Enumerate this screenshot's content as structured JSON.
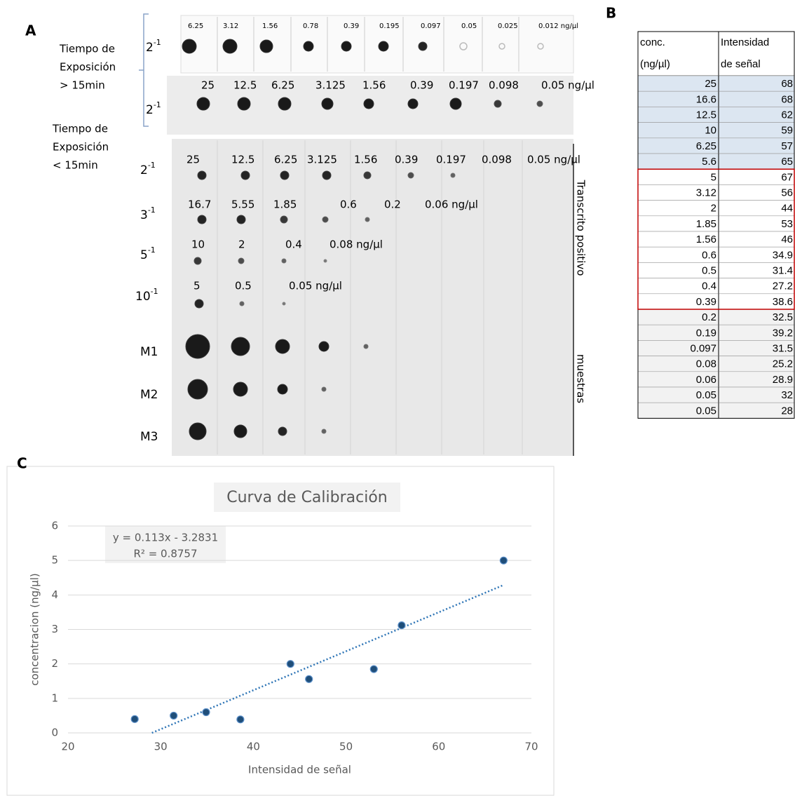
{
  "panel_a": {
    "label": "A",
    "exposure_long": [
      "Tiempo de",
      "Exposición",
      "> 15min"
    ],
    "exposure_short": [
      "Tiempo de",
      "Exposición",
      "< 15min"
    ],
    "strips": [
      {
        "dilution": {
          "base": "2",
          "exp": "-1"
        },
        "concentrations": [
          "6.25",
          "3.12",
          "1.56",
          "0.78",
          "0.39",
          "0.195",
          "0.097",
          "0.05",
          "0.025",
          "0.012 ng/µl"
        ]
      },
      {
        "dilution": {
          "base": "2",
          "exp": "-1"
        },
        "concentrations": [
          "25",
          "12.5",
          "6.25",
          "3.125",
          "1.56",
          "0.39",
          "0.197",
          "0.098",
          "0.05 ng/µl"
        ]
      }
    ],
    "blot_rows": [
      {
        "dilution": {
          "base": "2",
          "exp": "-1"
        },
        "concentrations": [
          "25",
          "12.5",
          "6.25",
          "3.125",
          "1.56",
          "0.39",
          "0.197",
          "0.098",
          "0.05 ng/µl"
        ]
      },
      {
        "dilution": {
          "base": "3",
          "exp": "-1"
        },
        "concentrations": [
          "16.7",
          "5.55",
          "1.85",
          "0.6",
          "0.2",
          "0.06 ng/µl"
        ]
      },
      {
        "dilution": {
          "base": "5",
          "exp": "-1"
        },
        "concentrations": [
          "10",
          "2",
          "0.4",
          "0.08 ng/µl"
        ]
      },
      {
        "dilution": {
          "base": "10",
          "exp": "-1"
        },
        "concentrations": [
          "5",
          "0.5",
          "0.05 ng/µl"
        ]
      }
    ],
    "samples": [
      "M1",
      "M2",
      "M3"
    ],
    "side_labels": [
      "Transcrito positivo",
      "muestras"
    ]
  },
  "panel_b": {
    "label": "B",
    "header": [
      [
        "conc.",
        "(ng/µl)"
      ],
      [
        "Intensidad",
        "de señal"
      ]
    ],
    "rows": [
      [
        25,
        68
      ],
      [
        16.6,
        68
      ],
      [
        12.5,
        62
      ],
      [
        10,
        59
      ],
      [
        6.25,
        57
      ],
      [
        5.6,
        65
      ],
      [
        5,
        67
      ],
      [
        3.12,
        56
      ],
      [
        2,
        44
      ],
      [
        1.85,
        53
      ],
      [
        1.56,
        46
      ],
      [
        0.6,
        34.9
      ],
      [
        0.5,
        31.4
      ],
      [
        0.4,
        27.2
      ],
      [
        0.39,
        38.6
      ],
      [
        0.2,
        32.5
      ],
      [
        0.19,
        39.2
      ],
      [
        0.097,
        31.5
      ],
      [
        0.08,
        25.2
      ],
      [
        0.06,
        28.9
      ],
      [
        0.05,
        32
      ],
      [
        0.05,
        28
      ]
    ]
  },
  "panel_c_label": "C",
  "chart_data": {
    "type": "scatter",
    "title": "Curva de Calibración",
    "x_label": "Intensidad de señal",
    "y_label": "concentracion (ng/µl)",
    "x": [
      27.2,
      31.4,
      34.9,
      38.6,
      44,
      46,
      53,
      56,
      67
    ],
    "values": [
      0.4,
      0.5,
      0.6,
      0.39,
      2,
      1.56,
      1.85,
      3.12,
      5
    ],
    "color": "#1f4e79",
    "xlim": [
      20,
      70
    ],
    "xticks": [
      20,
      30,
      40,
      50,
      60,
      70
    ],
    "ylim": [
      0,
      6
    ],
    "yticks": [
      0,
      1,
      2,
      3,
      4,
      5,
      6
    ],
    "grid": true,
    "trendline": {
      "slope": 0.113,
      "intercept": -3.2831,
      "color": "#2e75b6"
    },
    "annotations": [
      "y = 0.113x - 3.2831",
      "R² = 0.8757"
    ]
  }
}
